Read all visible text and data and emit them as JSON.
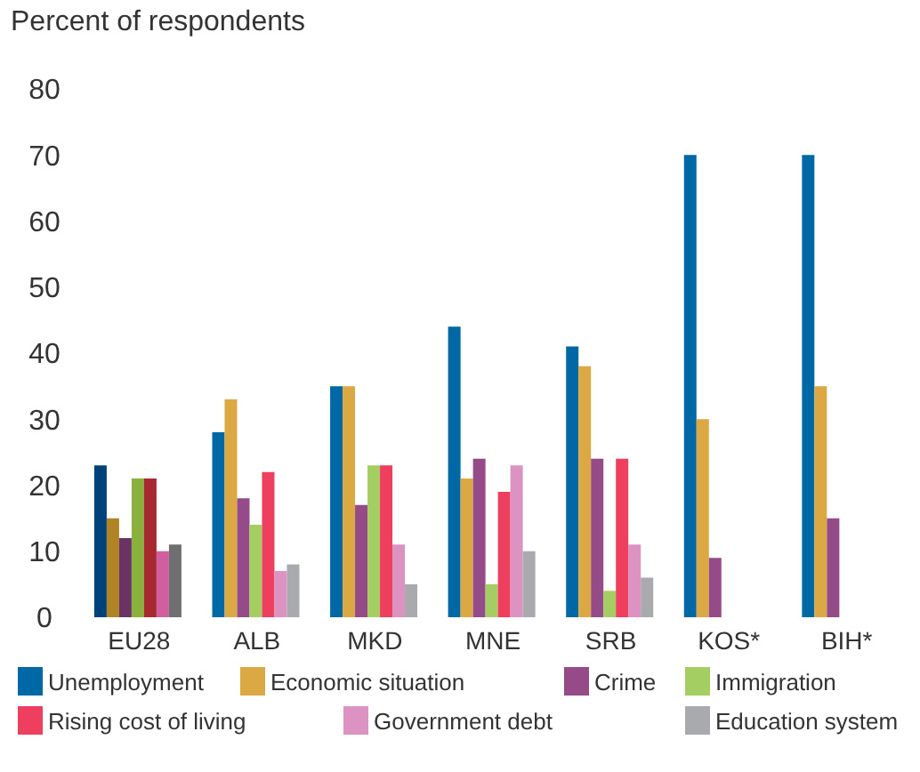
{
  "chart_data": {
    "type": "bar",
    "ylabel": "Percent of respondents",
    "categories": [
      "EU28",
      "ALB",
      "MKD",
      "MNE",
      "SRB",
      "KOS*",
      "BIH*"
    ],
    "ylim": [
      0,
      80
    ],
    "yticks": [
      0,
      10,
      20,
      30,
      40,
      50,
      60,
      70,
      80
    ],
    "grid": false,
    "legend": "bottom",
    "series": [
      {
        "name": "Unemployment",
        "color": "#0068a5",
        "colors": [
          "#00427a",
          "#0068a5",
          "#0068a5",
          "#0068a5",
          "#0068a5",
          "#0068a5",
          "#0068a5"
        ],
        "values": [
          23,
          28,
          35,
          44,
          41,
          70,
          70
        ]
      },
      {
        "name": "Economic situation",
        "color": "#dba844",
        "colors": [
          "#b08424",
          "#dba844",
          "#dba844",
          "#dba844",
          "#dba844",
          "#dba844",
          "#dba844"
        ],
        "values": [
          15,
          33,
          35,
          21,
          38,
          30,
          35
        ]
      },
      {
        "name": "Crime",
        "color": "#944b87",
        "colors": [
          "#6b3266",
          "#944b87",
          "#944b87",
          "#944b87",
          "#944b87",
          "#944b87",
          "#944b87"
        ],
        "values": [
          12,
          18,
          17,
          24,
          24,
          9,
          15
        ]
      },
      {
        "name": "Immigration",
        "color": "#a5ce62",
        "colors": [
          "#8ab03e",
          "#a5ce62",
          "#a5ce62",
          "#a5ce62",
          "#a5ce62",
          "#a5ce62",
          "#a5ce62"
        ],
        "values": [
          21,
          14,
          23,
          5,
          4,
          null,
          null
        ]
      },
      {
        "name": "Rising cost of living",
        "color": "#ee3f5e",
        "colors": [
          "#a8282f",
          "#ee3f5e",
          "#ee3f5e",
          "#ee3f5e",
          "#ee3f5e",
          "#ee3f5e",
          "#ee3f5e"
        ],
        "values": [
          21,
          22,
          23,
          19,
          24,
          null,
          null
        ]
      },
      {
        "name": "Government debt",
        "color": "#dc93c1",
        "colors": [
          "#cf5f9f",
          "#dc93c1",
          "#dc93c1",
          "#dc93c1",
          "#dc93c1",
          "#dc93c1",
          "#dc93c1"
        ],
        "values": [
          10,
          7,
          11,
          23,
          11,
          null,
          null
        ]
      },
      {
        "name": "Education system",
        "color": "#a9aaad",
        "colors": [
          "#6f6f71",
          "#a9aaad",
          "#a9aaad",
          "#a9aaad",
          "#a9aaad",
          "#a9aaad",
          "#a9aaad"
        ],
        "values": [
          11,
          8,
          5,
          10,
          6,
          null,
          null
        ]
      }
    ]
  }
}
